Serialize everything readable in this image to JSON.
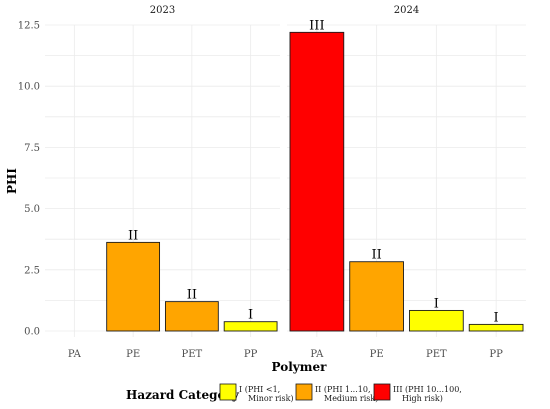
{
  "chart_data": {
    "type": "bar",
    "facets": [
      {
        "label": "2023",
        "categories": [
          "PA",
          "PE",
          "PET",
          "PP"
        ],
        "values": [
          null,
          3.62,
          1.2,
          0.38
        ],
        "hazard": [
          null,
          "II",
          "II",
          "I"
        ]
      },
      {
        "label": "2024",
        "categories": [
          "PA",
          "PE",
          "PET",
          "PP"
        ],
        "values": [
          12.2,
          2.83,
          0.84,
          0.27
        ],
        "hazard": [
          "III",
          "II",
          "I",
          "I"
        ]
      }
    ],
    "xlabel": "Polymer",
    "ylabel": "PHI",
    "ylim": [
      0,
      12.5
    ],
    "yticks": [
      0.0,
      2.5,
      5.0,
      7.5,
      10.0,
      12.5
    ],
    "ytick_labels": [
      "0.0",
      "2.5",
      "5.0",
      "7.5",
      "10.0",
      "12.5"
    ],
    "grid": true,
    "legend": {
      "title": "Hazard Category",
      "position": "bottom",
      "items": [
        {
          "key": "I",
          "lines": [
            "I (PHI <1,",
            "Minor risk)"
          ],
          "color": "#ffff00"
        },
        {
          "key": "II",
          "lines": [
            "II (PHI 1...10,",
            "Medium risk)"
          ],
          "color": "#ffa500"
        },
        {
          "key": "III",
          "lines": [
            "III (PHI 10...100,",
            "High risk)"
          ],
          "color": "#ff0000"
        }
      ]
    }
  }
}
